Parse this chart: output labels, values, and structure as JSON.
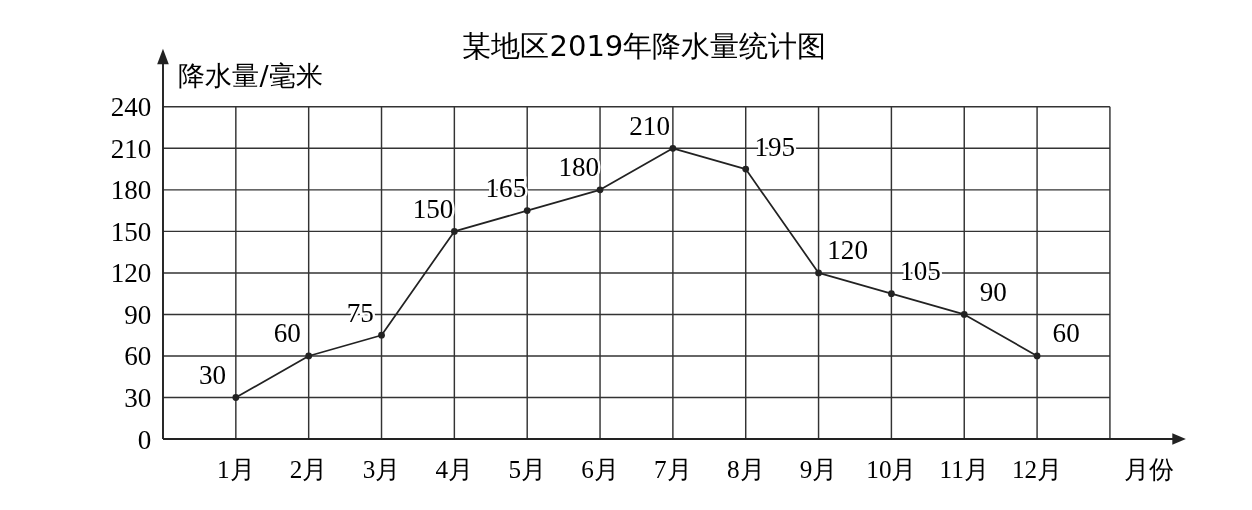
{
  "chart_data": {
    "type": "line",
    "title": "某地区2019年降水量统计图",
    "xlabel": "月份",
    "ylabel": "降水量/毫米",
    "categories": [
      "1月",
      "2月",
      "3月",
      "4月",
      "5月",
      "6月",
      "7月",
      "8月",
      "9月",
      "10月",
      "11月",
      "12月"
    ],
    "series": [
      {
        "color": "#222222",
        "values": [
          30,
          60,
          75,
          150,
          165,
          180,
          210,
          195,
          120,
          105,
          90,
          60
        ]
      }
    ],
    "ylim": [
      0,
      240
    ],
    "yticks": [
      0,
      30,
      60,
      90,
      120,
      150,
      180,
      210,
      240
    ],
    "grid": true,
    "data_labels": true,
    "marker": "circle",
    "line_style": "solid"
  }
}
